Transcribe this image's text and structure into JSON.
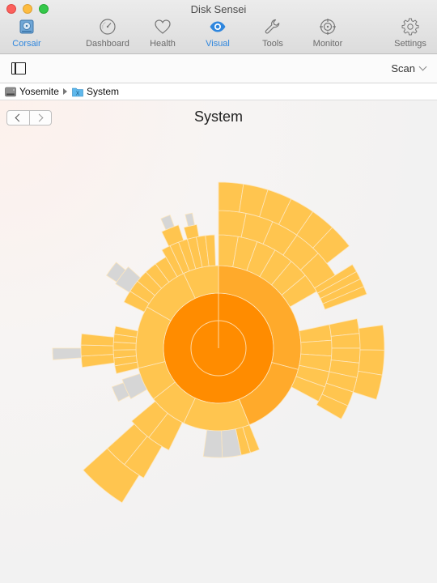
{
  "window": {
    "title": "Disk Sensei"
  },
  "toolbar": {
    "items": [
      {
        "id": "corsair",
        "label": "Corsair",
        "icon": "hard-drive-icon",
        "active": false
      },
      {
        "id": "dashboard",
        "label": "Dashboard",
        "icon": "gauge-icon",
        "active": false
      },
      {
        "id": "health",
        "label": "Health",
        "icon": "heart-icon",
        "active": false
      },
      {
        "id": "visual",
        "label": "Visual",
        "icon": "eye-icon",
        "active": true
      },
      {
        "id": "tools",
        "label": "Tools",
        "icon": "wrench-icon",
        "active": false
      },
      {
        "id": "monitor",
        "label": "Monitor",
        "icon": "crosshair-icon",
        "active": false
      },
      {
        "id": "settings",
        "label": "Settings",
        "icon": "gear-icon",
        "active": false
      }
    ],
    "accent": "#2e86de"
  },
  "subbar": {
    "scan_label": "Scan"
  },
  "breadcrumb": {
    "items": [
      {
        "label": "Yosemite",
        "icon": "disk-icon"
      },
      {
        "label": "System",
        "icon": "folder-icon"
      }
    ]
  },
  "view": {
    "title": "System"
  },
  "sunburst": {
    "colors": {
      "root": "#ff8c00",
      "level1": "#ffaa2b",
      "level2": "#ffc04a",
      "level3": "#ffc54f",
      "other": "#d6d6d6",
      "stroke": "#fde7bf"
    }
  }
}
